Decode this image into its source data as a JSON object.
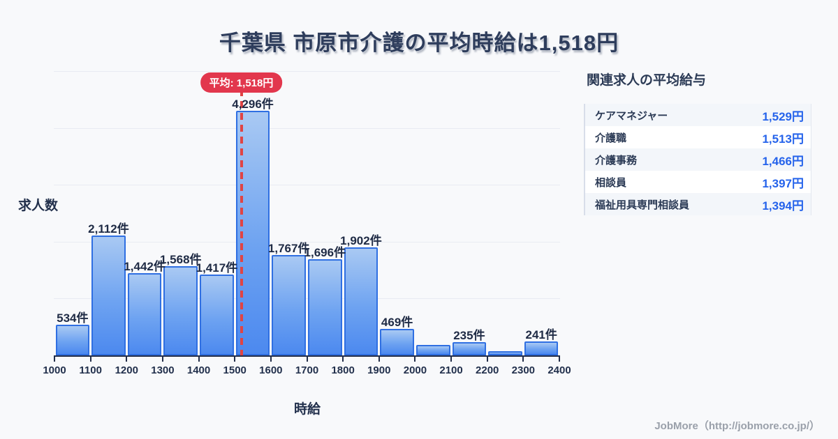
{
  "title": "千葉県 市原市介護の平均時給は1,518円",
  "chart_data": {
    "type": "bar",
    "title": "千葉県 市原市介護の平均時給は1,518円",
    "xlabel": "時給",
    "ylabel": "求人数",
    "x_ticks": [
      "1000",
      "1100",
      "1200",
      "1300",
      "1400",
      "1500",
      "1600",
      "1700",
      "1800",
      "1900",
      "2000",
      "2100",
      "2200",
      "2300",
      "2400"
    ],
    "values": [
      534,
      2112,
      1442,
      1568,
      1417,
      4296,
      1767,
      1696,
      1902,
      469,
      180,
      235,
      70,
      241
    ],
    "bar_labels": [
      "534件",
      "2,112件",
      "1,442件",
      "1,568件",
      "1,417件",
      "4,296件",
      "1,767件",
      "1,696件",
      "1,902件",
      "469件",
      "",
      "235件",
      "",
      "241件"
    ],
    "unlabeled_bar_values_estimated": [
      180,
      70
    ],
    "ylim": [
      0,
      5000
    ],
    "y_grid_step": 1000,
    "grid": "horizontal",
    "legend": "none",
    "mean": {
      "value": 1518,
      "label": "平均: 1,518円"
    }
  },
  "side_panel": {
    "heading": "関連求人の平均給与",
    "rows": [
      {
        "name": "ケアマネジャー",
        "value": "1,529円"
      },
      {
        "name": "介護職",
        "value": "1,513円"
      },
      {
        "name": "介護事務",
        "value": "1,466円"
      },
      {
        "name": "相談員",
        "value": "1,397円"
      },
      {
        "name": "福祉用具専門相談員",
        "value": "1,394円"
      }
    ]
  },
  "footer": {
    "credit": "JobMore（http://jobmore.co.jp/）"
  },
  "colors": {
    "background": "#f8f9fb",
    "title_text": "#2e3d5c",
    "bar_border": "#2f6fe2",
    "bar_gradient_top": "#a9c9f3",
    "bar_gradient_bottom": "#4c89ef",
    "grid_line": "#e8ebf2",
    "axis": "#232e4a",
    "mean_line": "#e04444",
    "mean_badge": "#e2374d",
    "value_blue": "#2563eb",
    "row_alt": "#f3f6fa",
    "footer_gray": "#9aa0aa"
  }
}
